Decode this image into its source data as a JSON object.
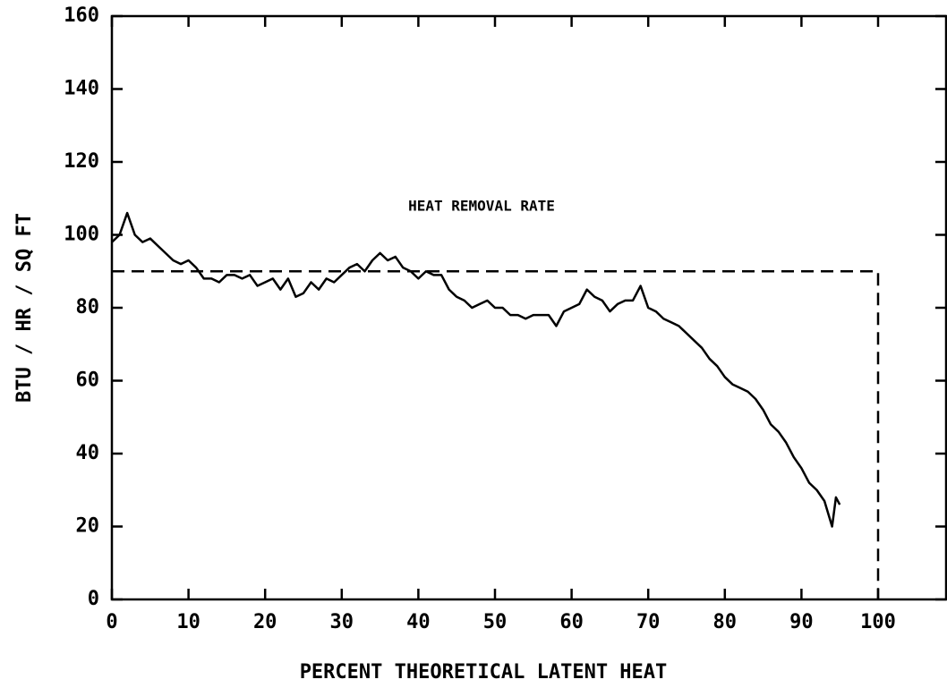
{
  "chart_data": {
    "type": "line",
    "xlabel": "PERCENT THEORETICAL LATENT HEAT",
    "ylabel": "BTU / HR / SQ FT",
    "annotation": "HEAT REMOVAL RATE",
    "x": [
      0,
      1,
      2,
      3,
      4,
      5,
      6,
      7,
      8,
      9,
      10,
      11,
      12,
      13,
      14,
      15,
      16,
      17,
      18,
      19,
      20,
      21,
      22,
      23,
      24,
      25,
      26,
      27,
      28,
      29,
      30,
      31,
      32,
      33,
      34,
      35,
      36,
      37,
      38,
      39,
      40,
      41,
      42,
      43,
      44,
      45,
      46,
      47,
      48,
      49,
      50,
      51,
      52,
      53,
      54,
      55,
      56,
      57,
      58,
      59,
      60,
      61,
      62,
      63,
      64,
      65,
      66,
      67,
      68,
      69,
      70,
      71,
      72,
      73,
      74,
      75,
      76,
      77,
      78,
      79,
      80,
      81,
      82,
      83,
      84,
      85,
      86,
      87,
      88,
      89,
      90,
      91,
      92,
      93,
      94,
      94.5,
      95
    ],
    "series": [
      {
        "color": "#000000",
        "values": [
          98,
          100,
          106,
          100,
          98,
          99,
          97,
          95,
          93,
          92,
          93,
          91,
          88,
          88,
          87,
          89,
          89,
          88,
          89,
          86,
          87,
          88,
          85,
          88,
          83,
          84,
          87,
          85,
          88,
          87,
          89,
          91,
          92,
          90,
          93,
          95,
          93,
          94,
          91,
          90,
          88,
          90,
          89,
          89,
          85,
          83,
          82,
          80,
          81,
          82,
          80,
          80,
          78,
          78,
          77,
          78,
          78,
          78,
          75,
          79,
          80,
          81,
          85,
          83,
          82,
          79,
          81,
          82,
          82,
          86,
          80,
          79,
          77,
          76,
          75,
          73,
          71,
          69,
          66,
          64,
          61,
          59,
          58,
          57,
          55,
          52,
          48,
          46,
          43,
          39,
          36,
          32,
          30,
          27,
          20,
          28,
          26
        ]
      }
    ],
    "reference_line": {
      "x": [
        0,
        100,
        100
      ],
      "y": [
        90,
        90,
        0
      ]
    },
    "xlim": [
      0,
      109
    ],
    "ylim": [
      0,
      160
    ],
    "xticks": [
      0,
      10,
      20,
      30,
      40,
      50,
      60,
      70,
      80,
      90,
      100
    ],
    "yticks": [
      0,
      20,
      40,
      60,
      80,
      100,
      120,
      140,
      160
    ]
  }
}
